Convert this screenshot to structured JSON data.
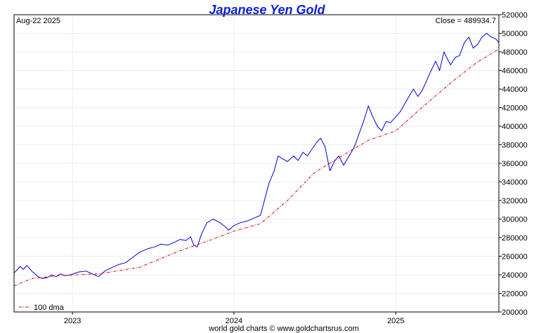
{
  "chart_data": {
    "type": "line",
    "title": "Japanese Yen Gold",
    "date_label": "Aug-22  2025",
    "close_label": "Close = 489934.7",
    "footer": "world gold charts © www.goldchartsrus.com",
    "legend": {
      "label": "100 dma",
      "placement": "bottom-left"
    },
    "grid": true,
    "ylim": [
      200000,
      520000
    ],
    "y_ticks": [
      200000,
      220000,
      240000,
      260000,
      280000,
      300000,
      320000,
      340000,
      360000,
      380000,
      400000,
      420000,
      440000,
      460000,
      480000,
      500000,
      520000
    ],
    "y_tick_labels": [
      "200000",
      "220000",
      "240000",
      "260000",
      "280000",
      "300000",
      "320000",
      "340000",
      "360000",
      "380000",
      "400000",
      "420000",
      "440000",
      "460000",
      "480000",
      "500000",
      "520000"
    ],
    "x_range": [
      "2022-08-22",
      "2025-08-22"
    ],
    "x_ticks": [
      {
        "label": "2023",
        "date": "2023-01-01"
      },
      {
        "label": "2024",
        "date": "2024-01-01"
      },
      {
        "label": "2025",
        "date": "2025-01-01"
      }
    ],
    "colors": {
      "price": "#0000dd",
      "dma": "#dd0000",
      "title": "#0b1fd6",
      "grid": "#e6eef3"
    },
    "series": [
      {
        "name": "",
        "style": "solid",
        "points": [
          [
            "2022-08-22",
            242000
          ],
          [
            "2022-09-05",
            249000
          ],
          [
            "2022-09-12",
            246000
          ],
          [
            "2022-09-20",
            250000
          ],
          [
            "2022-10-01",
            244000
          ],
          [
            "2022-10-15",
            238000
          ],
          [
            "2022-10-25",
            236000
          ],
          [
            "2022-11-05",
            237000
          ],
          [
            "2022-11-15",
            240000
          ],
          [
            "2022-11-25",
            238000
          ],
          [
            "2022-12-05",
            241000
          ],
          [
            "2022-12-15",
            239000
          ],
          [
            "2022-12-28",
            240000
          ],
          [
            "2023-01-15",
            243000
          ],
          [
            "2023-02-01",
            244000
          ],
          [
            "2023-02-15",
            241000
          ],
          [
            "2023-03-01",
            238000
          ],
          [
            "2023-03-15",
            244000
          ],
          [
            "2023-04-01",
            248000
          ],
          [
            "2023-04-15",
            251000
          ],
          [
            "2023-05-01",
            253000
          ],
          [
            "2023-05-15",
            258000
          ],
          [
            "2023-06-01",
            264000
          ],
          [
            "2023-06-20",
            268000
          ],
          [
            "2023-07-05",
            270000
          ],
          [
            "2023-07-20",
            273000
          ],
          [
            "2023-08-05",
            272000
          ],
          [
            "2023-08-20",
            275000
          ],
          [
            "2023-09-01",
            278000
          ],
          [
            "2023-09-15",
            277000
          ],
          [
            "2023-09-25",
            281000
          ],
          [
            "2023-10-02",
            272000
          ],
          [
            "2023-10-10",
            270000
          ],
          [
            "2023-10-20",
            284000
          ],
          [
            "2023-11-01",
            296000
          ],
          [
            "2023-11-15",
            300000
          ],
          [
            "2023-12-01",
            296000
          ],
          [
            "2023-12-12",
            292000
          ],
          [
            "2023-12-20",
            288000
          ],
          [
            "2024-01-01",
            293000
          ],
          [
            "2024-01-15",
            296000
          ],
          [
            "2024-02-01",
            298000
          ],
          [
            "2024-02-15",
            301000
          ],
          [
            "2024-03-01",
            304000
          ],
          [
            "2024-03-10",
            320000
          ],
          [
            "2024-03-20",
            338000
          ],
          [
            "2024-04-01",
            352000
          ],
          [
            "2024-04-10",
            368000
          ],
          [
            "2024-04-20",
            365000
          ],
          [
            "2024-05-01",
            362000
          ],
          [
            "2024-05-15",
            368000
          ],
          [
            "2024-05-25",
            363000
          ],
          [
            "2024-06-05",
            372000
          ],
          [
            "2024-06-15",
            368000
          ],
          [
            "2024-06-25",
            375000
          ],
          [
            "2024-07-05",
            382000
          ],
          [
            "2024-07-15",
            387000
          ],
          [
            "2024-07-25",
            378000
          ],
          [
            "2024-08-05",
            352000
          ],
          [
            "2024-08-15",
            362000
          ],
          [
            "2024-08-25",
            368000
          ],
          [
            "2024-09-05",
            358000
          ],
          [
            "2024-09-15",
            366000
          ],
          [
            "2024-09-25",
            374000
          ],
          [
            "2024-10-01",
            380000
          ],
          [
            "2024-10-10",
            392000
          ],
          [
            "2024-10-20",
            405000
          ],
          [
            "2024-10-31",
            422000
          ],
          [
            "2024-11-10",
            410000
          ],
          [
            "2024-11-20",
            400000
          ],
          [
            "2024-11-30",
            395000
          ],
          [
            "2024-12-10",
            405000
          ],
          [
            "2024-12-20",
            404000
          ],
          [
            "2025-01-01",
            410000
          ],
          [
            "2025-01-10",
            415000
          ],
          [
            "2025-01-20",
            423000
          ],
          [
            "2025-02-01",
            433000
          ],
          [
            "2025-02-10",
            440000
          ],
          [
            "2025-02-20",
            432000
          ],
          [
            "2025-03-01",
            438000
          ],
          [
            "2025-03-10",
            447000
          ],
          [
            "2025-03-20",
            458000
          ],
          [
            "2025-04-01",
            470000
          ],
          [
            "2025-04-10",
            460000
          ],
          [
            "2025-04-20",
            480000
          ],
          [
            "2025-04-28",
            472000
          ],
          [
            "2025-05-05",
            466000
          ],
          [
            "2025-05-15",
            474000
          ],
          [
            "2025-05-25",
            476000
          ],
          [
            "2025-06-05",
            490000
          ],
          [
            "2025-06-15",
            496000
          ],
          [
            "2025-06-25",
            484000
          ],
          [
            "2025-07-05",
            488000
          ],
          [
            "2025-07-15",
            496000
          ],
          [
            "2025-07-25",
            500000
          ],
          [
            "2025-08-05",
            496000
          ],
          [
            "2025-08-15",
            494000
          ],
          [
            "2025-08-22",
            489935
          ]
        ]
      },
      {
        "name": "100 dma",
        "style": "dashdot",
        "points": [
          [
            "2022-08-22",
            228000
          ],
          [
            "2022-10-01",
            236000
          ],
          [
            "2022-12-01",
            239000
          ],
          [
            "2023-03-01",
            241000
          ],
          [
            "2023-06-01",
            248000
          ],
          [
            "2023-09-01",
            266000
          ],
          [
            "2023-11-01",
            276000
          ],
          [
            "2024-01-01",
            287000
          ],
          [
            "2024-03-01",
            295000
          ],
          [
            "2024-05-01",
            320000
          ],
          [
            "2024-07-01",
            350000
          ],
          [
            "2024-09-01",
            368000
          ],
          [
            "2024-11-01",
            385000
          ],
          [
            "2025-01-01",
            395000
          ],
          [
            "2025-03-01",
            420000
          ],
          [
            "2025-05-01",
            445000
          ],
          [
            "2025-07-01",
            468000
          ],
          [
            "2025-08-22",
            483000
          ]
        ]
      }
    ]
  }
}
